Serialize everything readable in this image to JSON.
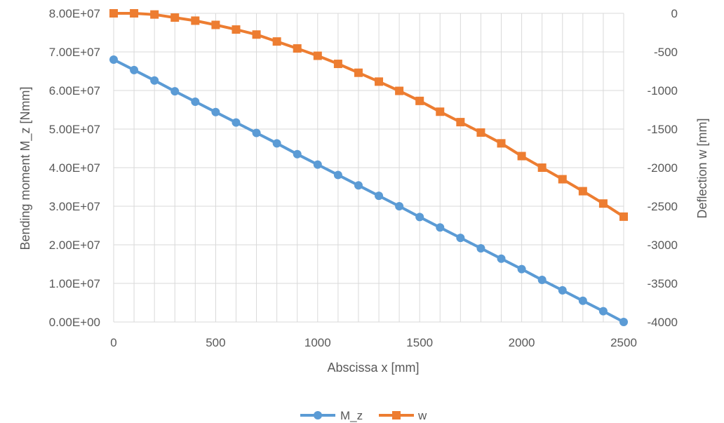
{
  "chart_data": {
    "type": "line",
    "xlabel": "Abscissa x [mm]",
    "ylabel": "Bending moment M_z [Nmm]",
    "y2label": "Deflection w [mm]",
    "xlim": [
      0,
      2500
    ],
    "ylim": [
      0,
      80000000
    ],
    "y2lim": [
      -4000,
      0
    ],
    "x_ticks": [
      "0",
      "500",
      "1000",
      "1500",
      "2000",
      "2500"
    ],
    "y_ticks": [
      "0.00E+00",
      "1.00E+07",
      "2.00E+07",
      "3.00E+07",
      "4.00E+07",
      "5.00E+07",
      "6.00E+07",
      "7.00E+07",
      "8.00E+07"
    ],
    "y2_ticks": [
      "-4000",
      "-3500",
      "-3000",
      "-2500",
      "-2000",
      "-1500",
      "-1000",
      "-500",
      "0"
    ],
    "grid": true,
    "legend_position": "bottom",
    "x": [
      0,
      100,
      200,
      300,
      400,
      500,
      600,
      700,
      800,
      900,
      1000,
      1100,
      1200,
      1300,
      1400,
      1500,
      1600,
      1700,
      1800,
      1900,
      2000,
      2100,
      2200,
      2300,
      2400,
      2500
    ],
    "series": [
      {
        "name": "M_z",
        "axis": "left",
        "color": "#5b9bd5",
        "marker": "circle",
        "values": [
          68000000,
          65300000,
          62600000,
          59800000,
          57100000,
          54400000,
          51700000,
          49000000,
          46300000,
          43500000,
          40800000,
          38100000,
          35400000,
          32700000,
          30000000,
          27200000,
          24500000,
          21800000,
          19100000,
          16400000,
          13700000,
          10900000,
          8200000,
          5500000,
          2800000,
          0
        ]
      },
      {
        "name": "w",
        "axis": "right",
        "color": "#ed7d31",
        "marker": "square",
        "values": [
          0,
          0,
          -15,
          -55,
          -95,
          -150,
          -210,
          -275,
          -365,
          -455,
          -550,
          -655,
          -770,
          -885,
          -1005,
          -1135,
          -1275,
          -1410,
          -1545,
          -1685,
          -1850,
          -2000,
          -2150,
          -2305,
          -2465,
          -2635
        ]
      }
    ]
  }
}
